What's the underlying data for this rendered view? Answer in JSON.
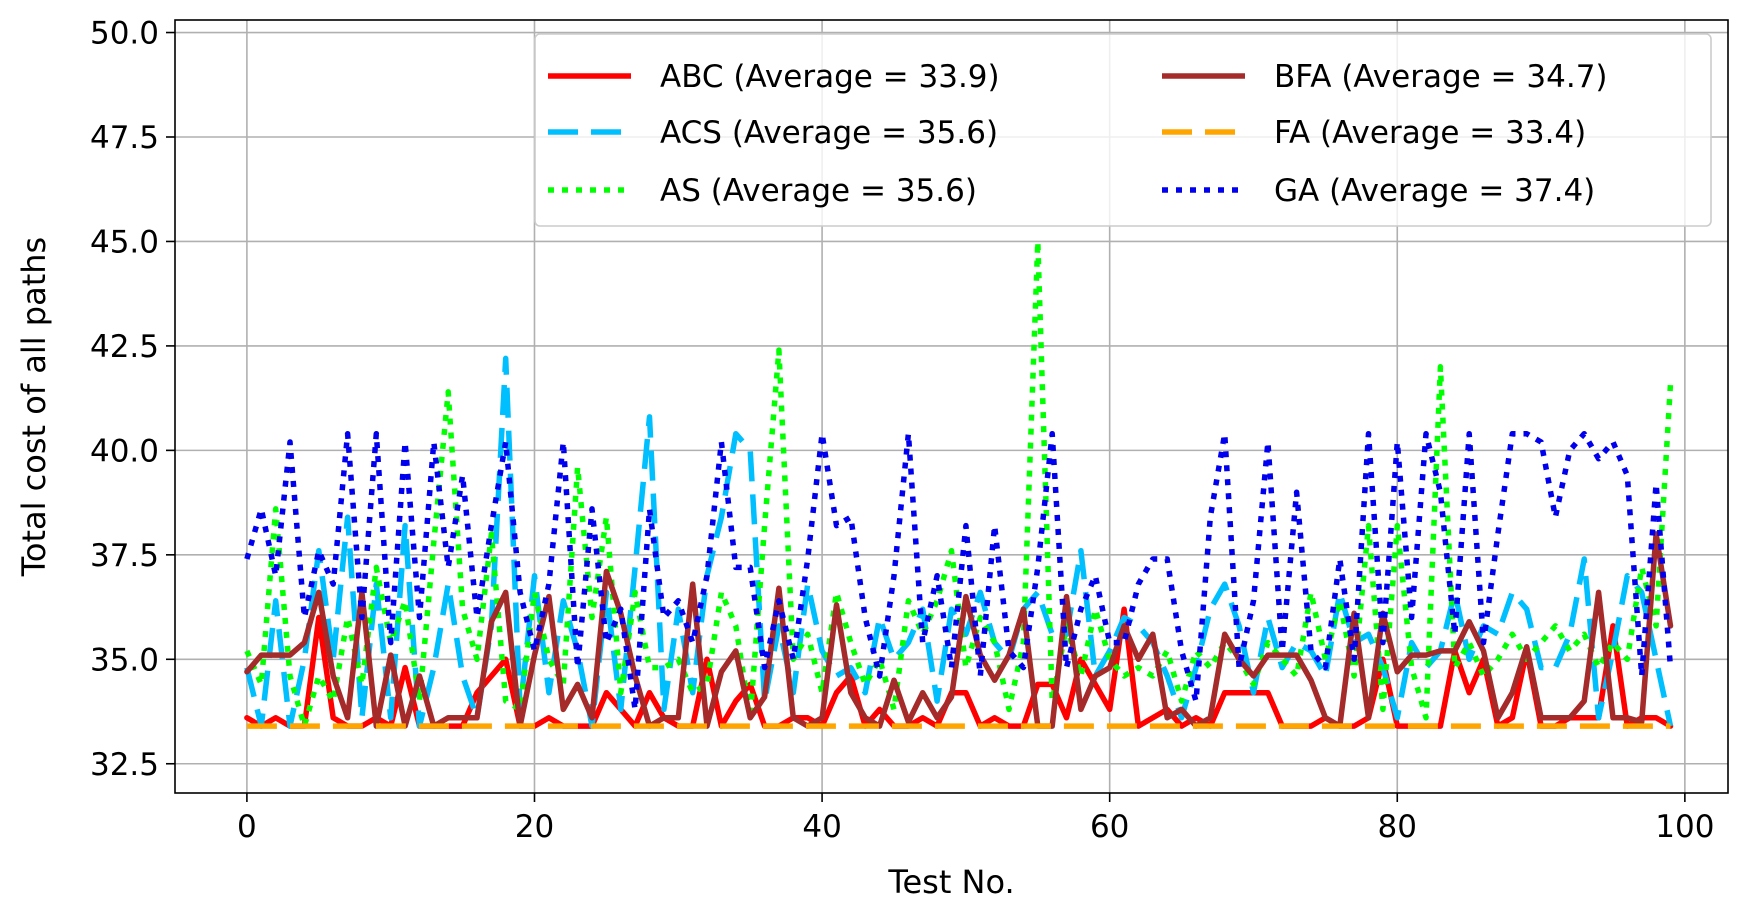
{
  "chart_data": {
    "type": "line",
    "title": "",
    "xlabel": "Test No.",
    "ylabel": "Total cost of all paths",
    "xlim": [
      -5,
      103
    ],
    "ylim": [
      31.8,
      50.3
    ],
    "xticks": [
      0,
      20,
      40,
      60,
      80,
      100
    ],
    "xtick_labels": [
      "0",
      "20",
      "40",
      "60",
      "80",
      "100"
    ],
    "yticks": [
      32.5,
      35.0,
      37.5,
      40.0,
      42.5,
      45.0,
      47.5,
      50.0
    ],
    "ytick_labels": [
      "32.5",
      "35.0",
      "37.5",
      "40.0",
      "42.5",
      "45.0",
      "47.5",
      "50.0"
    ],
    "grid": true,
    "legend": {
      "placement": "top-right",
      "columns": 2
    },
    "x": [
      0,
      1,
      2,
      3,
      4,
      5,
      6,
      7,
      8,
      9,
      10,
      11,
      12,
      13,
      14,
      15,
      16,
      17,
      18,
      19,
      20,
      21,
      22,
      23,
      24,
      25,
      26,
      27,
      28,
      29,
      30,
      31,
      32,
      33,
      34,
      35,
      36,
      37,
      38,
      39,
      40,
      41,
      42,
      43,
      44,
      45,
      46,
      47,
      48,
      49,
      50,
      51,
      52,
      53,
      54,
      55,
      56,
      57,
      58,
      59,
      60,
      61,
      62,
      63,
      64,
      65,
      66,
      67,
      68,
      69,
      70,
      71,
      72,
      73,
      74,
      75,
      76,
      77,
      78,
      79,
      80,
      81,
      82,
      83,
      84,
      85,
      86,
      87,
      88,
      89,
      90,
      91,
      92,
      93,
      94,
      95,
      96,
      97,
      98,
      99
    ],
    "series": [
      {
        "name": "ABC (Average = 33.9)",
        "color": "#ff0000",
        "dash": "solid",
        "values": [
          33.6,
          33.4,
          33.6,
          33.4,
          33.4,
          36.0,
          33.6,
          33.4,
          33.4,
          33.6,
          33.4,
          34.8,
          33.4,
          33.4,
          33.4,
          33.4,
          34.2,
          34.6,
          35.0,
          33.4,
          33.4,
          33.6,
          33.4,
          33.4,
          33.4,
          34.2,
          33.8,
          33.4,
          34.2,
          33.6,
          33.4,
          33.4,
          35.0,
          33.4,
          34.0,
          34.4,
          33.4,
          33.4,
          33.6,
          33.6,
          33.4,
          34.2,
          34.6,
          33.4,
          33.8,
          33.4,
          33.4,
          33.6,
          33.4,
          34.2,
          34.2,
          33.4,
          33.6,
          33.4,
          33.4,
          34.4,
          34.4,
          33.6,
          35.0,
          34.4,
          33.8,
          36.2,
          33.4,
          33.6,
          33.8,
          33.4,
          33.6,
          33.4,
          34.2,
          34.2,
          34.2,
          34.2,
          33.4,
          33.4,
          33.4,
          33.6,
          33.4,
          33.4,
          33.6,
          35.0,
          33.4,
          33.4,
          33.4,
          33.4,
          35.2,
          34.2,
          35.0,
          33.4,
          33.6,
          35.2,
          33.4,
          33.4,
          33.6,
          33.6,
          33.6,
          35.8,
          33.4,
          33.6,
          33.6,
          33.4
        ]
      },
      {
        "name": "ACS (Average = 35.6)",
        "color": "#00bfff",
        "dash": "dashed",
        "values": [
          34.8,
          33.4,
          36.4,
          33.4,
          35.0,
          37.6,
          35.0,
          38.4,
          33.6,
          36.8,
          33.6,
          38.2,
          33.4,
          34.8,
          36.8,
          34.6,
          33.6,
          35.8,
          42.2,
          33.8,
          37.0,
          34.2,
          36.4,
          35.2,
          33.4,
          36.6,
          33.8,
          37.2,
          40.8,
          33.8,
          36.2,
          34.2,
          37.0,
          38.4,
          40.4,
          40.0,
          34.0,
          35.8,
          34.2,
          36.8,
          35.2,
          34.6,
          34.8,
          34.2,
          36.0,
          35.0,
          35.4,
          36.2,
          34.0,
          36.2,
          35.6,
          36.6,
          35.4,
          35.0,
          36.2,
          36.6,
          35.6,
          35.6,
          37.6,
          34.6,
          35.2,
          36.0,
          35.8,
          35.4,
          34.6,
          33.6,
          34.8,
          36.2,
          36.8,
          35.8,
          34.2,
          36.0,
          34.8,
          35.4,
          35.2,
          34.6,
          36.6,
          35.4,
          35.6,
          34.8,
          33.6,
          35.4,
          34.8,
          35.2,
          36.6,
          35.0,
          35.8,
          35.6,
          36.6,
          36.2,
          34.8,
          34.8,
          35.6,
          37.4,
          33.6,
          35.2,
          37.0,
          36.6,
          35.0,
          33.4
        ]
      },
      {
        "name": "AS (Average = 35.6)",
        "color": "#00ff00",
        "dash": "dotted",
        "values": [
          35.2,
          34.4,
          38.6,
          34.6,
          33.4,
          34.6,
          34.0,
          36.0,
          34.4,
          37.2,
          35.4,
          36.4,
          34.0,
          37.8,
          41.4,
          36.2,
          35.0,
          38.0,
          34.0,
          33.8,
          36.6,
          35.0,
          34.4,
          39.6,
          36.0,
          38.4,
          34.2,
          36.6,
          34.8,
          34.8,
          35.0,
          34.2,
          34.4,
          36.6,
          35.8,
          33.6,
          38.2,
          42.4,
          35.0,
          35.6,
          34.2,
          36.6,
          35.4,
          34.4,
          35.0,
          33.8,
          36.4,
          35.6,
          36.4,
          37.6,
          34.8,
          36.0,
          35.4,
          33.8,
          35.4,
          45.0,
          34.0,
          35.8,
          34.6,
          36.2,
          35.0,
          34.6,
          34.8,
          34.6,
          35.2,
          34.0,
          35.2,
          34.8,
          35.4,
          35.0,
          34.4,
          35.4,
          35.0,
          34.6,
          36.6,
          35.0,
          36.4,
          34.6,
          38.2,
          33.8,
          38.2,
          34.8,
          33.6,
          42.0,
          34.8,
          35.4,
          34.6,
          35.0,
          35.6,
          35.0,
          35.4,
          35.8,
          35.2,
          35.6,
          34.8,
          35.4,
          35.0,
          37.2,
          35.8,
          41.6
        ]
      },
      {
        "name": "BFA (Average = 34.7)",
        "color": "#a52a2a",
        "dash": "solid",
        "values": [
          34.7,
          35.1,
          35.1,
          35.1,
          35.4,
          36.6,
          34.6,
          33.6,
          36.6,
          33.4,
          35.1,
          33.4,
          34.6,
          33.4,
          33.6,
          33.6,
          33.6,
          35.9,
          36.6,
          33.4,
          35.1,
          36.5,
          33.8,
          34.4,
          33.6,
          37.1,
          36.1,
          34.6,
          33.4,
          33.6,
          33.6,
          36.8,
          33.4,
          34.7,
          35.2,
          33.6,
          34.1,
          36.7,
          33.6,
          33.4,
          33.6,
          36.3,
          34.2,
          33.6,
          33.4,
          34.5,
          33.5,
          34.2,
          33.6,
          34.1,
          36.5,
          35.1,
          34.5,
          35.1,
          36.2,
          33.4,
          33.4,
          36.5,
          33.8,
          34.6,
          34.8,
          35.8,
          35.0,
          35.6,
          33.6,
          33.8,
          33.4,
          33.6,
          35.6,
          35.0,
          34.6,
          35.1,
          35.1,
          35.1,
          34.5,
          33.6,
          33.4,
          36.1,
          33.6,
          36.1,
          34.7,
          35.1,
          35.1,
          35.2,
          35.2,
          35.9,
          35.2,
          33.6,
          34.2,
          35.3,
          33.6,
          33.6,
          33.6,
          34.0,
          36.6,
          33.6,
          33.6,
          33.5,
          38.0,
          35.8
        ]
      },
      {
        "name": "FA (Average = 33.4)",
        "color": "#ffa500",
        "dash": "dashed",
        "values": [
          33.4,
          33.4,
          33.4,
          33.4,
          33.4,
          33.4,
          33.4,
          33.4,
          33.4,
          33.4,
          33.4,
          33.4,
          33.4,
          33.4,
          33.4,
          33.4,
          33.4,
          33.4,
          33.4,
          33.4,
          33.4,
          33.4,
          33.4,
          33.4,
          33.4,
          33.4,
          33.4,
          33.4,
          33.4,
          33.4,
          33.4,
          33.4,
          33.4,
          33.4,
          33.4,
          33.4,
          33.4,
          33.4,
          33.4,
          33.4,
          33.4,
          33.4,
          33.4,
          33.4,
          33.4,
          33.4,
          33.4,
          33.4,
          33.4,
          33.4,
          33.4,
          33.4,
          33.4,
          33.4,
          33.4,
          33.4,
          33.4,
          33.4,
          33.4,
          33.4,
          33.4,
          33.4,
          33.4,
          33.4,
          33.4,
          33.4,
          33.4,
          33.4,
          33.4,
          33.4,
          33.4,
          33.4,
          33.4,
          33.4,
          33.4,
          33.4,
          33.4,
          33.4,
          33.4,
          33.4,
          33.4,
          33.4,
          33.4,
          33.4,
          33.4,
          33.4,
          33.4,
          33.4,
          33.4,
          33.4,
          33.4,
          33.4,
          33.4,
          33.4,
          33.4,
          33.4,
          33.4,
          33.4,
          33.4,
          33.4
        ]
      },
      {
        "name": "GA (Average = 37.4)",
        "color": "#0000ee",
        "dash": "dotted",
        "values": [
          37.4,
          38.6,
          37.0,
          40.2,
          36.0,
          37.6,
          36.8,
          40.4,
          36.0,
          40.4,
          35.4,
          40.2,
          36.0,
          40.2,
          37.2,
          39.4,
          36.0,
          38.2,
          40.2,
          36.6,
          35.2,
          36.8,
          40.2,
          34.8,
          38.6,
          35.4,
          36.2,
          33.8,
          38.6,
          36.0,
          36.4,
          35.4,
          37.0,
          40.2,
          37.2,
          37.2,
          34.8,
          36.4,
          35.0,
          37.4,
          40.4,
          38.2,
          38.4,
          36.0,
          34.6,
          37.0,
          40.4,
          35.4,
          37.0,
          34.8,
          38.2,
          34.6,
          38.2,
          35.2,
          34.8,
          37.2,
          40.4,
          34.8,
          36.2,
          37.0,
          35.4,
          35.4,
          36.8,
          37.4,
          37.4,
          35.2,
          34.0,
          38.4,
          40.4,
          34.8,
          36.4,
          40.2,
          35.2,
          39.0,
          35.2,
          34.8,
          37.4,
          35.0,
          40.4,
          35.4,
          40.2,
          36.0,
          40.4,
          39.0,
          35.6,
          40.4,
          35.4,
          38.0,
          40.4,
          40.4,
          40.2,
          38.4,
          40.0,
          40.4,
          39.8,
          40.2,
          39.4,
          34.6,
          39.2,
          34.8
        ]
      }
    ]
  }
}
